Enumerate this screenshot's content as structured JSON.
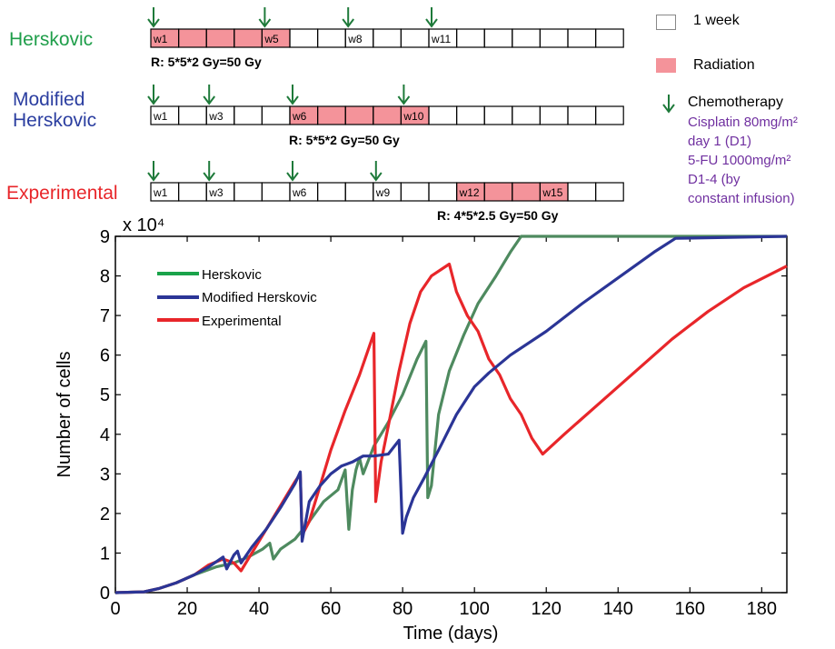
{
  "schedules": [
    {
      "name": "Herskovic",
      "color": "#1f9e4a",
      "radiation_weeks": [
        1,
        2,
        3,
        4,
        5
      ],
      "week_labels": {
        "1": "w1",
        "5": "w5",
        "8": "w8",
        "11": "w11"
      },
      "chemo_weeks": [
        1,
        5,
        8,
        11
      ],
      "radiation_label": "R: 5*5*2 Gy=50 Gy"
    },
    {
      "name": "Modified\nHerskovic",
      "color": "#2b3ea0",
      "radiation_weeks": [
        6,
        7,
        8,
        9,
        10
      ],
      "week_labels": {
        "1": "w1",
        "3": "w3",
        "6": "w6",
        "10": "w10"
      },
      "chemo_weeks": [
        1,
        3,
        6,
        10
      ],
      "radiation_label": "R: 5*5*2 Gy=50 Gy"
    },
    {
      "name": "Experimental",
      "color": "#e8262a",
      "radiation_weeks": [
        12,
        13,
        14,
        15
      ],
      "week_labels": {
        "1": "w1",
        "3": "w3",
        "6": "w6",
        "9": "w9",
        "12": "w12",
        "15": "w15"
      },
      "chemo_weeks": [
        1,
        3,
        6,
        9
      ],
      "radiation_label": "R: 4*5*2.5 Gy=50 Gy"
    }
  ],
  "schedule_legend": {
    "week": "1 week",
    "radiation": "Radiation",
    "chemotherapy": "Chemotherapy",
    "chemo_lines": [
      "Cisplatin 80mg/m²",
      "day 1 (D1)",
      "5-FU 1000mg/m²",
      "D1-4 (by",
      "constant infusion)"
    ]
  },
  "colors": {
    "radiation_fill": "#f4939a",
    "chemo_arrow": "#1e7a3a",
    "chemo_text": "#7030a0"
  },
  "chart_data": {
    "type": "line",
    "xlabel": "Time (days)",
    "ylabel": "Number of cells",
    "exponent_label": "x 10⁴",
    "xlim": [
      0,
      187
    ],
    "ylim": [
      0,
      9
    ],
    "xticks": [
      0,
      20,
      40,
      60,
      80,
      100,
      120,
      140,
      160,
      180
    ],
    "yticks": [
      0,
      1,
      2,
      3,
      4,
      5,
      6,
      7,
      8,
      9
    ],
    "y_scale_note": "values in units of 10^4 cells",
    "grid": false,
    "legend_position": "top-left",
    "series": [
      {
        "name": "Herskovic",
        "color": "#4e8a5f",
        "points": [
          [
            0,
            0
          ],
          [
            8,
            0.02
          ],
          [
            12,
            0.1
          ],
          [
            17,
            0.25
          ],
          [
            22,
            0.45
          ],
          [
            28,
            0.65
          ],
          [
            33,
            0.75
          ],
          [
            37,
            0.9
          ],
          [
            41,
            1.1
          ],
          [
            43,
            1.25
          ],
          [
            44,
            0.85
          ],
          [
            46,
            1.1
          ],
          [
            50,
            1.35
          ],
          [
            54,
            1.8
          ],
          [
            58,
            2.3
          ],
          [
            62,
            2.6
          ],
          [
            64,
            3.1
          ],
          [
            65,
            1.6
          ],
          [
            66,
            2.6
          ],
          [
            67,
            3.1
          ],
          [
            68,
            3.4
          ],
          [
            69,
            3.0
          ],
          [
            72,
            3.7
          ],
          [
            76,
            4.3
          ],
          [
            80,
            5.0
          ],
          [
            84,
            5.9
          ],
          [
            86.5,
            6.35
          ],
          [
            87,
            2.4
          ],
          [
            88,
            2.7
          ],
          [
            90,
            4.5
          ],
          [
            93,
            5.6
          ],
          [
            97,
            6.5
          ],
          [
            101,
            7.3
          ],
          [
            106,
            8.0
          ],
          [
            110,
            8.6
          ],
          [
            113,
            9.0
          ],
          [
            187,
            9.0
          ]
        ]
      },
      {
        "name": "Modified Herskovic",
        "color": "#2b3596",
        "points": [
          [
            0,
            0
          ],
          [
            8,
            0.02
          ],
          [
            12,
            0.1
          ],
          [
            17,
            0.25
          ],
          [
            22,
            0.45
          ],
          [
            26,
            0.65
          ],
          [
            30,
            0.9
          ],
          [
            31,
            0.6
          ],
          [
            33,
            0.95
          ],
          [
            34,
            1.05
          ],
          [
            35,
            0.75
          ],
          [
            38,
            1.15
          ],
          [
            42,
            1.6
          ],
          [
            46,
            2.15
          ],
          [
            50,
            2.75
          ],
          [
            51.5,
            3.05
          ],
          [
            52,
            1.3
          ],
          [
            54,
            2.3
          ],
          [
            57,
            2.7
          ],
          [
            60,
            3.0
          ],
          [
            63,
            3.2
          ],
          [
            66,
            3.3
          ],
          [
            69,
            3.45
          ],
          [
            72,
            3.45
          ],
          [
            76,
            3.5
          ],
          [
            79,
            3.85
          ],
          [
            80,
            1.5
          ],
          [
            81,
            1.9
          ],
          [
            83,
            2.4
          ],
          [
            86,
            2.9
          ],
          [
            90,
            3.6
          ],
          [
            95,
            4.5
          ],
          [
            100,
            5.2
          ],
          [
            104,
            5.55
          ],
          [
            110,
            6.0
          ],
          [
            120,
            6.6
          ],
          [
            130,
            7.3
          ],
          [
            140,
            7.95
          ],
          [
            150,
            8.6
          ],
          [
            156,
            8.95
          ],
          [
            187,
            9.0
          ]
        ]
      },
      {
        "name": "Experimental",
        "color": "#e8262a",
        "points": [
          [
            0,
            0
          ],
          [
            8,
            0.02
          ],
          [
            12,
            0.1
          ],
          [
            17,
            0.25
          ],
          [
            22,
            0.45
          ],
          [
            26,
            0.7
          ],
          [
            30,
            0.85
          ],
          [
            33,
            0.75
          ],
          [
            35,
            0.55
          ],
          [
            38,
            1.0
          ],
          [
            42,
            1.6
          ],
          [
            46,
            2.2
          ],
          [
            50,
            2.8
          ],
          [
            51.5,
            3.0
          ],
          [
            52,
            1.45
          ],
          [
            54,
            1.8
          ],
          [
            57,
            2.7
          ],
          [
            60,
            3.6
          ],
          [
            64,
            4.6
          ],
          [
            68,
            5.5
          ],
          [
            72,
            6.55
          ],
          [
            72.5,
            2.3
          ],
          [
            74,
            3.3
          ],
          [
            76,
            4.2
          ],
          [
            79,
            5.6
          ],
          [
            82,
            6.8
          ],
          [
            85,
            7.6
          ],
          [
            88,
            8.0
          ],
          [
            93,
            8.3
          ],
          [
            95,
            7.6
          ],
          [
            98,
            7.0
          ],
          [
            101,
            6.6
          ],
          [
            104,
            5.9
          ],
          [
            107,
            5.5
          ],
          [
            110,
            4.9
          ],
          [
            113,
            4.5
          ],
          [
            116,
            3.9
          ],
          [
            119,
            3.5
          ],
          [
            125,
            4.0
          ],
          [
            135,
            4.8
          ],
          [
            145,
            5.6
          ],
          [
            155,
            6.4
          ],
          [
            165,
            7.1
          ],
          [
            175,
            7.7
          ],
          [
            187,
            8.25
          ]
        ]
      }
    ]
  }
}
